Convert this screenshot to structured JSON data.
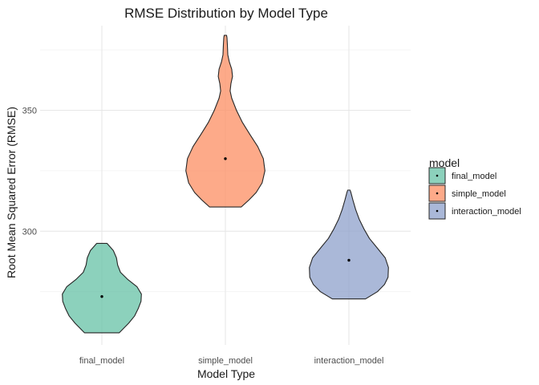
{
  "chart_data": {
    "type": "violin",
    "title": "RMSE Distribution by Model Type",
    "xlabel": "Model Type",
    "ylabel": "Root Mean Squared Error (RMSE)",
    "ylim": [
      253,
      385
    ],
    "yticks": [
      300,
      350
    ],
    "ytick_labels": [
      "300",
      "350"
    ],
    "categories": [
      "final_model",
      "simple_model",
      "interaction_model"
    ],
    "legend": {
      "title": "model",
      "position": "right",
      "entries": [
        "final_model",
        "simple_model",
        "interaction_model"
      ]
    },
    "grid": true,
    "series": [
      {
        "name": "final_model",
        "color": "#66C2A5",
        "mean": 273,
        "min": 258,
        "max": 295,
        "profile": [
          [
            258,
            0.44
          ],
          [
            262,
            0.68
          ],
          [
            265,
            0.83
          ],
          [
            268,
            0.92
          ],
          [
            271,
            0.99
          ],
          [
            274,
            1.0
          ],
          [
            277,
            0.89
          ],
          [
            280,
            0.66
          ],
          [
            283,
            0.47
          ],
          [
            286,
            0.4
          ],
          [
            289,
            0.37
          ],
          [
            292,
            0.29
          ],
          [
            295,
            0.13
          ]
        ]
      },
      {
        "name": "simple_model",
        "color": "#FC8D62",
        "mean": 330,
        "min": 310,
        "max": 381,
        "profile": [
          [
            310,
            0.4
          ],
          [
            313,
            0.6
          ],
          [
            316,
            0.78
          ],
          [
            320,
            0.93
          ],
          [
            325,
            1.0
          ],
          [
            330,
            0.96
          ],
          [
            335,
            0.82
          ],
          [
            340,
            0.62
          ],
          [
            345,
            0.43
          ],
          [
            350,
            0.28
          ],
          [
            355,
            0.16
          ],
          [
            358,
            0.12
          ],
          [
            361,
            0.14
          ],
          [
            364,
            0.18
          ],
          [
            367,
            0.16
          ],
          [
            370,
            0.1
          ],
          [
            373,
            0.06
          ],
          [
            377,
            0.05
          ],
          [
            380,
            0.04
          ],
          [
            381,
            0.03
          ]
        ]
      },
      {
        "name": "interaction_model",
        "color": "#8DA0CB",
        "mean": 288,
        "min": 272,
        "max": 317,
        "profile": [
          [
            272,
            0.42
          ],
          [
            275,
            0.72
          ],
          [
            278,
            0.9
          ],
          [
            281,
            0.99
          ],
          [
            285,
            1.0
          ],
          [
            289,
            0.92
          ],
          [
            293,
            0.72
          ],
          [
            297,
            0.52
          ],
          [
            301,
            0.38
          ],
          [
            305,
            0.26
          ],
          [
            309,
            0.17
          ],
          [
            313,
            0.1
          ],
          [
            316,
            0.05
          ],
          [
            317,
            0.03
          ]
        ]
      }
    ]
  }
}
